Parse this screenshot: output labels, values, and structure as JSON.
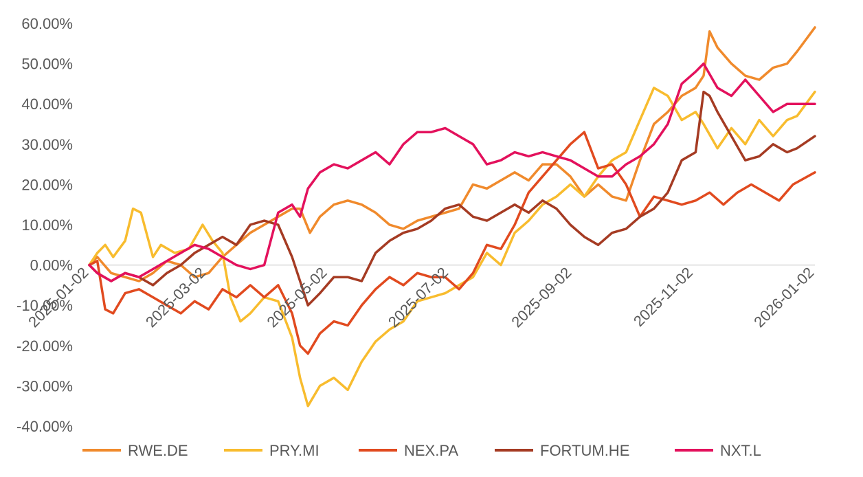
{
  "chart_data": {
    "type": "line",
    "title": "",
    "xlabel": "",
    "ylabel": "",
    "x_ticks": [
      "2025-01-02",
      "2025-03-02",
      "2025-05-02",
      "2025-07-02",
      "2025-09-02",
      "2025-11-02",
      "2026-01-02"
    ],
    "y_ticks": [
      "60.00%",
      "50.00%",
      "40.00%",
      "30.00%",
      "20.00%",
      "10.00%",
      "0.00%",
      "-10.00%",
      "-20.00%",
      "-30.00%",
      "-40.00%"
    ],
    "ylim": [
      -40,
      60
    ],
    "xlim": [
      "2025-01-02",
      "2026-01-02"
    ],
    "grid": false,
    "legend": "bottom",
    "series": [
      {
        "name": "RWE.DE",
        "color": "#F08A2C",
        "points": [
          [
            "2025-01-02",
            0
          ],
          [
            "2025-01-06",
            2
          ],
          [
            "2025-01-13",
            -2
          ],
          [
            "2025-01-20",
            -3
          ],
          [
            "2025-01-27",
            -4
          ],
          [
            "2025-02-03",
            -2
          ],
          [
            "2025-02-10",
            1
          ],
          [
            "2025-02-17",
            0
          ],
          [
            "2025-02-24",
            -3
          ],
          [
            "2025-03-03",
            -2
          ],
          [
            "2025-03-10",
            2
          ],
          [
            "2025-03-17",
            5
          ],
          [
            "2025-03-24",
            8
          ],
          [
            "2025-03-31",
            10
          ],
          [
            "2025-04-07",
            12
          ],
          [
            "2025-04-14",
            14
          ],
          [
            "2025-04-18",
            14
          ],
          [
            "2025-04-23",
            8
          ],
          [
            "2025-04-28",
            12
          ],
          [
            "2025-05-05",
            15
          ],
          [
            "2025-05-12",
            16
          ],
          [
            "2025-05-19",
            15
          ],
          [
            "2025-05-26",
            13
          ],
          [
            "2025-06-02",
            10
          ],
          [
            "2025-06-09",
            9
          ],
          [
            "2025-06-16",
            11
          ],
          [
            "2025-06-23",
            12
          ],
          [
            "2025-06-30",
            13
          ],
          [
            "2025-07-07",
            14
          ],
          [
            "2025-07-14",
            20
          ],
          [
            "2025-07-21",
            19
          ],
          [
            "2025-07-28",
            21
          ],
          [
            "2025-08-04",
            23
          ],
          [
            "2025-08-11",
            21
          ],
          [
            "2025-08-18",
            25
          ],
          [
            "2025-08-25",
            25
          ],
          [
            "2025-09-01",
            22
          ],
          [
            "2025-09-08",
            17
          ],
          [
            "2025-09-15",
            20
          ],
          [
            "2025-09-22",
            17
          ],
          [
            "2025-09-29",
            16
          ],
          [
            "2025-10-06",
            26
          ],
          [
            "2025-10-13",
            35
          ],
          [
            "2025-10-20",
            38
          ],
          [
            "2025-10-27",
            42
          ],
          [
            "2025-11-03",
            44
          ],
          [
            "2025-11-07",
            47
          ],
          [
            "2025-11-10",
            58
          ],
          [
            "2025-11-14",
            54
          ],
          [
            "2025-11-21",
            50
          ],
          [
            "2025-11-28",
            47
          ],
          [
            "2025-12-05",
            46
          ],
          [
            "2025-12-12",
            49
          ],
          [
            "2025-12-19",
            50
          ],
          [
            "2025-12-24",
            53
          ],
          [
            "2026-01-02",
            59
          ]
        ]
      },
      {
        "name": "PRY.MI",
        "color": "#F8BC2E",
        "points": [
          [
            "2025-01-02",
            0
          ],
          [
            "2025-01-06",
            3
          ],
          [
            "2025-01-10",
            5
          ],
          [
            "2025-01-14",
            2
          ],
          [
            "2025-01-20",
            6
          ],
          [
            "2025-01-24",
            14
          ],
          [
            "2025-01-28",
            13
          ],
          [
            "2025-02-03",
            2
          ],
          [
            "2025-02-07",
            5
          ],
          [
            "2025-02-14",
            3
          ],
          [
            "2025-02-21",
            4
          ],
          [
            "2025-02-28",
            10
          ],
          [
            "2025-03-05",
            6
          ],
          [
            "2025-03-10",
            3
          ],
          [
            "2025-03-14",
            -8
          ],
          [
            "2025-03-19",
            -14
          ],
          [
            "2025-03-24",
            -12
          ],
          [
            "2025-03-31",
            -8
          ],
          [
            "2025-04-07",
            -9
          ],
          [
            "2025-04-14",
            -18
          ],
          [
            "2025-04-18",
            -28
          ],
          [
            "2025-04-22",
            -35
          ],
          [
            "2025-04-28",
            -30
          ],
          [
            "2025-05-05",
            -28
          ],
          [
            "2025-05-12",
            -31
          ],
          [
            "2025-05-19",
            -24
          ],
          [
            "2025-05-26",
            -19
          ],
          [
            "2025-06-02",
            -16
          ],
          [
            "2025-06-09",
            -14
          ],
          [
            "2025-06-16",
            -9
          ],
          [
            "2025-06-23",
            -8
          ],
          [
            "2025-06-30",
            -7
          ],
          [
            "2025-07-07",
            -5
          ],
          [
            "2025-07-14",
            -3
          ],
          [
            "2025-07-21",
            3
          ],
          [
            "2025-07-28",
            0
          ],
          [
            "2025-08-04",
            8
          ],
          [
            "2025-08-11",
            11
          ],
          [
            "2025-08-18",
            15
          ],
          [
            "2025-08-25",
            17
          ],
          [
            "2025-09-01",
            20
          ],
          [
            "2025-09-08",
            17
          ],
          [
            "2025-09-15",
            22
          ],
          [
            "2025-09-22",
            26
          ],
          [
            "2025-09-29",
            28
          ],
          [
            "2025-10-06",
            36
          ],
          [
            "2025-10-13",
            44
          ],
          [
            "2025-10-20",
            42
          ],
          [
            "2025-10-27",
            36
          ],
          [
            "2025-11-03",
            38
          ],
          [
            "2025-11-07",
            35
          ],
          [
            "2025-11-14",
            29
          ],
          [
            "2025-11-21",
            34
          ],
          [
            "2025-11-28",
            30
          ],
          [
            "2025-12-05",
            36
          ],
          [
            "2025-12-12",
            32
          ],
          [
            "2025-12-19",
            36
          ],
          [
            "2025-12-24",
            37
          ],
          [
            "2026-01-02",
            43
          ]
        ]
      },
      {
        "name": "NEX.PA",
        "color": "#E14A1F",
        "points": [
          [
            "2025-01-02",
            0
          ],
          [
            "2025-01-06",
            1
          ],
          [
            "2025-01-10",
            -11
          ],
          [
            "2025-01-14",
            -12
          ],
          [
            "2025-01-20",
            -7
          ],
          [
            "2025-01-27",
            -6
          ],
          [
            "2025-02-03",
            -8
          ],
          [
            "2025-02-10",
            -10
          ],
          [
            "2025-02-17",
            -12
          ],
          [
            "2025-02-24",
            -9
          ],
          [
            "2025-03-03",
            -11
          ],
          [
            "2025-03-10",
            -6
          ],
          [
            "2025-03-17",
            -8
          ],
          [
            "2025-03-24",
            -5
          ],
          [
            "2025-03-31",
            -8
          ],
          [
            "2025-04-07",
            -5
          ],
          [
            "2025-04-14",
            -12
          ],
          [
            "2025-04-18",
            -20
          ],
          [
            "2025-04-22",
            -22
          ],
          [
            "2025-04-28",
            -17
          ],
          [
            "2025-05-05",
            -14
          ],
          [
            "2025-05-12",
            -15
          ],
          [
            "2025-05-19",
            -10
          ],
          [
            "2025-05-26",
            -6
          ],
          [
            "2025-06-02",
            -3
          ],
          [
            "2025-06-09",
            -5
          ],
          [
            "2025-06-16",
            -2
          ],
          [
            "2025-06-23",
            -3
          ],
          [
            "2025-06-30",
            -3
          ],
          [
            "2025-07-07",
            -6
          ],
          [
            "2025-07-14",
            -2
          ],
          [
            "2025-07-21",
            5
          ],
          [
            "2025-07-28",
            4
          ],
          [
            "2025-08-04",
            10
          ],
          [
            "2025-08-11",
            18
          ],
          [
            "2025-08-18",
            22
          ],
          [
            "2025-08-25",
            26
          ],
          [
            "2025-09-01",
            30
          ],
          [
            "2025-09-08",
            33
          ],
          [
            "2025-09-15",
            24
          ],
          [
            "2025-09-22",
            25
          ],
          [
            "2025-09-29",
            20
          ],
          [
            "2025-10-06",
            12
          ],
          [
            "2025-10-13",
            17
          ],
          [
            "2025-10-20",
            16
          ],
          [
            "2025-10-27",
            15
          ],
          [
            "2025-11-03",
            16
          ],
          [
            "2025-11-10",
            18
          ],
          [
            "2025-11-17",
            15
          ],
          [
            "2025-11-24",
            18
          ],
          [
            "2025-12-01",
            20
          ],
          [
            "2025-12-08",
            18
          ],
          [
            "2025-12-15",
            16
          ],
          [
            "2025-12-22",
            20
          ],
          [
            "2026-01-02",
            23
          ]
        ]
      },
      {
        "name": "FORTUM.HE",
        "color": "#A53B23",
        "points": [
          [
            "2025-01-02",
            0
          ],
          [
            "2025-01-06",
            -2
          ],
          [
            "2025-01-13",
            -4
          ],
          [
            "2025-01-20",
            -2
          ],
          [
            "2025-01-27",
            -3
          ],
          [
            "2025-02-03",
            -5
          ],
          [
            "2025-02-10",
            -2
          ],
          [
            "2025-02-17",
            0
          ],
          [
            "2025-02-24",
            3
          ],
          [
            "2025-03-03",
            5
          ],
          [
            "2025-03-10",
            7
          ],
          [
            "2025-03-17",
            5
          ],
          [
            "2025-03-24",
            10
          ],
          [
            "2025-03-31",
            11
          ],
          [
            "2025-04-07",
            10
          ],
          [
            "2025-04-14",
            2
          ],
          [
            "2025-04-18",
            -4
          ],
          [
            "2025-04-22",
            -10
          ],
          [
            "2025-04-28",
            -7
          ],
          [
            "2025-05-05",
            -3
          ],
          [
            "2025-05-12",
            -3
          ],
          [
            "2025-05-19",
            -4
          ],
          [
            "2025-05-26",
            3
          ],
          [
            "2025-06-02",
            6
          ],
          [
            "2025-06-09",
            8
          ],
          [
            "2025-06-16",
            9
          ],
          [
            "2025-06-23",
            11
          ],
          [
            "2025-06-30",
            14
          ],
          [
            "2025-07-07",
            15
          ],
          [
            "2025-07-14",
            12
          ],
          [
            "2025-07-21",
            11
          ],
          [
            "2025-07-28",
            13
          ],
          [
            "2025-08-04",
            15
          ],
          [
            "2025-08-11",
            13
          ],
          [
            "2025-08-18",
            16
          ],
          [
            "2025-08-25",
            14
          ],
          [
            "2025-09-01",
            10
          ],
          [
            "2025-09-08",
            7
          ],
          [
            "2025-09-15",
            5
          ],
          [
            "2025-09-22",
            8
          ],
          [
            "2025-09-29",
            9
          ],
          [
            "2025-10-06",
            12
          ],
          [
            "2025-10-13",
            14
          ],
          [
            "2025-10-20",
            18
          ],
          [
            "2025-10-27",
            26
          ],
          [
            "2025-11-03",
            28
          ],
          [
            "2025-11-07",
            43
          ],
          [
            "2025-11-10",
            42
          ],
          [
            "2025-11-14",
            38
          ],
          [
            "2025-11-21",
            32
          ],
          [
            "2025-11-28",
            26
          ],
          [
            "2025-12-05",
            27
          ],
          [
            "2025-12-12",
            30
          ],
          [
            "2025-12-19",
            28
          ],
          [
            "2025-12-24",
            29
          ],
          [
            "2026-01-02",
            32
          ]
        ]
      },
      {
        "name": "NXT.L",
        "color": "#E3115C",
        "points": [
          [
            "2025-01-02",
            0
          ],
          [
            "2025-01-06",
            -2
          ],
          [
            "2025-01-13",
            -4
          ],
          [
            "2025-01-20",
            -2
          ],
          [
            "2025-01-27",
            -3
          ],
          [
            "2025-02-03",
            -1
          ],
          [
            "2025-02-10",
            1
          ],
          [
            "2025-02-17",
            3
          ],
          [
            "2025-02-24",
            5
          ],
          [
            "2025-03-03",
            4
          ],
          [
            "2025-03-10",
            2
          ],
          [
            "2025-03-17",
            0
          ],
          [
            "2025-03-24",
            -1
          ],
          [
            "2025-03-31",
            0
          ],
          [
            "2025-04-07",
            13
          ],
          [
            "2025-04-14",
            15
          ],
          [
            "2025-04-18",
            12
          ],
          [
            "2025-04-22",
            19
          ],
          [
            "2025-04-28",
            23
          ],
          [
            "2025-05-05",
            25
          ],
          [
            "2025-05-12",
            24
          ],
          [
            "2025-05-19",
            26
          ],
          [
            "2025-05-26",
            28
          ],
          [
            "2025-06-02",
            25
          ],
          [
            "2025-06-09",
            30
          ],
          [
            "2025-06-16",
            33
          ],
          [
            "2025-06-23",
            33
          ],
          [
            "2025-06-30",
            34
          ],
          [
            "2025-07-07",
            32
          ],
          [
            "2025-07-14",
            30
          ],
          [
            "2025-07-21",
            25
          ],
          [
            "2025-07-28",
            26
          ],
          [
            "2025-08-04",
            28
          ],
          [
            "2025-08-11",
            27
          ],
          [
            "2025-08-18",
            28
          ],
          [
            "2025-08-25",
            27
          ],
          [
            "2025-09-01",
            26
          ],
          [
            "2025-09-08",
            24
          ],
          [
            "2025-09-15",
            22
          ],
          [
            "2025-09-22",
            22
          ],
          [
            "2025-09-29",
            25
          ],
          [
            "2025-10-06",
            27
          ],
          [
            "2025-10-13",
            30
          ],
          [
            "2025-10-20",
            35
          ],
          [
            "2025-10-27",
            45
          ],
          [
            "2025-11-03",
            48
          ],
          [
            "2025-11-07",
            50
          ],
          [
            "2025-11-14",
            44
          ],
          [
            "2025-11-21",
            42
          ],
          [
            "2025-11-28",
            46
          ],
          [
            "2025-12-05",
            42
          ],
          [
            "2025-12-12",
            38
          ],
          [
            "2025-12-19",
            40
          ],
          [
            "2025-12-26",
            40
          ],
          [
            "2026-01-02",
            40
          ]
        ]
      }
    ]
  }
}
